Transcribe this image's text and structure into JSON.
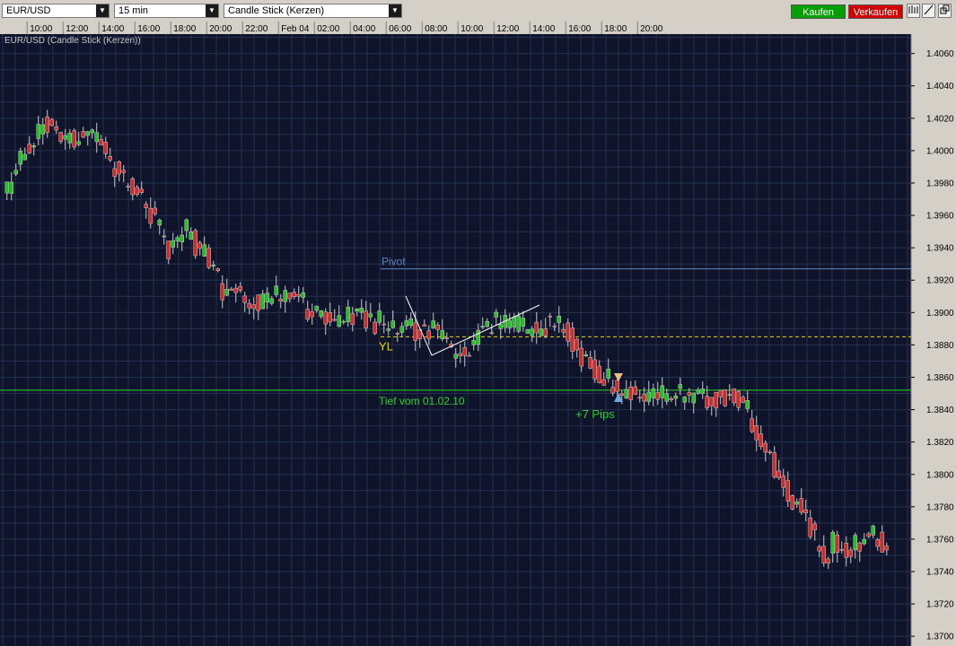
{
  "toolbar": {
    "symbol": "EUR/USD",
    "interval": "15 min",
    "chart_type": "Candle Stick (Kerzen)",
    "buy_label": "Kaufen",
    "sell_label": "Verkaufen",
    "buy_color": "#00a000",
    "sell_color": "#d00000",
    "icons": [
      "bar-chart-icon",
      "draw-line-icon",
      "window-restore-icon"
    ]
  },
  "chart_data": {
    "type": "candlestick",
    "title": "EUR/USD (Candle Stick (Kerzen))",
    "x_ticks": [
      "10:00",
      "12:00",
      "14:00",
      "16:00",
      "18:00",
      "20:00",
      "22:00",
      "Feb 04",
      "02:00",
      "04:00",
      "06:00",
      "08:00",
      "10:00",
      "12:00",
      "14:00",
      "16:00",
      "18:00",
      "20:00"
    ],
    "y_ticks": [
      "1.4060",
      "1.4040",
      "1.4020",
      "1.4000",
      "1.3980",
      "1.3960",
      "1.3940",
      "1.3920",
      "1.3900",
      "1.3880",
      "1.3860",
      "1.3840",
      "1.3820",
      "1.3800",
      "1.3780",
      "1.3760",
      "1.3740",
      "1.3720",
      "1.3700"
    ],
    "ylim": [
      1.3694,
      1.4072
    ],
    "grid": true,
    "bar_minutes": 15,
    "close_path": [
      [
        0,
        1.3975
      ],
      [
        4,
        1.4
      ],
      [
        8,
        1.402
      ],
      [
        12,
        1.401
      ],
      [
        16,
        1.4008
      ],
      [
        20,
        1.4005
      ],
      [
        24,
        1.399
      ],
      [
        28,
        1.3975
      ],
      [
        32,
        1.396
      ],
      [
        36,
        1.394
      ],
      [
        40,
        1.395
      ],
      [
        44,
        1.3935
      ],
      [
        48,
        1.3915
      ],
      [
        52,
        1.391
      ],
      [
        56,
        1.3905
      ],
      [
        60,
        1.3912
      ],
      [
        64,
        1.391
      ],
      [
        68,
        1.39
      ],
      [
        72,
        1.3895
      ],
      [
        76,
        1.39
      ],
      [
        80,
        1.3898
      ],
      [
        84,
        1.3892
      ],
      [
        88,
        1.389
      ],
      [
        92,
        1.389
      ],
      [
        96,
        1.3887
      ],
      [
        100,
        1.387
      ],
      [
        104,
        1.3885
      ],
      [
        108,
        1.3893
      ],
      [
        112,
        1.3892
      ],
      [
        116,
        1.3888
      ],
      [
        120,
        1.3893
      ],
      [
        124,
        1.389
      ],
      [
        128,
        1.3872
      ],
      [
        132,
        1.3862
      ],
      [
        136,
        1.3853
      ],
      [
        138,
        1.3851
      ],
      [
        142,
        1.3846
      ],
      [
        146,
        1.385
      ],
      [
        152,
        1.3848
      ],
      [
        156,
        1.3845
      ],
      [
        160,
        1.385
      ],
      [
        164,
        1.3845
      ],
      [
        168,
        1.3822
      ],
      [
        172,
        1.3795
      ],
      [
        176,
        1.3782
      ],
      [
        180,
        1.376
      ],
      [
        182,
        1.3744
      ],
      [
        184,
        1.3758
      ],
      [
        188,
        1.3755
      ],
      [
        192,
        1.3762
      ],
      [
        196,
        1.3758
      ]
    ],
    "lines": {
      "pivot": {
        "label": "Pivot",
        "value": 1.3927,
        "color": "#5b86b8"
      },
      "yl": {
        "label": "YL",
        "value": 1.3885,
        "color": "#e6d800"
      },
      "tief": {
        "label": "Tief vom 01.02.10",
        "value": 1.3852,
        "color": "#2ad62a"
      }
    },
    "annotation": {
      "label": "+7 Pips",
      "color": "#2ad62a"
    },
    "markers": {
      "arrow_up_color": "#6fa8dc",
      "arrow_down_color": "#f0c080"
    }
  }
}
